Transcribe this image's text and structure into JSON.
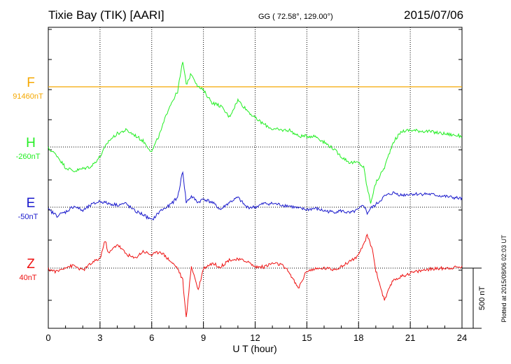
{
  "header": {
    "title": "Tixie Bay (TIK)  [AARI]",
    "coords": "GG ( 72.58°, 129.00°)",
    "date": "2015/07/06"
  },
  "footer": {
    "plotted": "Plotted at 2015/08/06 02:03 UT",
    "scale_label": "500 nT"
  },
  "chart_data": {
    "type": "line",
    "title": "Tixie Bay (TIK)  [AARI]",
    "xlabel": "U T (hour)",
    "ylabel": "",
    "xlim": [
      0,
      24
    ],
    "x_ticks": [
      "0",
      "3",
      "6",
      "9",
      "12",
      "15",
      "18",
      "21",
      "24"
    ],
    "scale_bar_nT": 500,
    "grid": true,
    "series": [
      {
        "name": "F",
        "baseline_label": "91460nT",
        "baseline_nT": 91460,
        "color": "#f5a800",
        "x": [
          0,
          24
        ],
        "y": [
          91460,
          91460
        ]
      },
      {
        "name": "H",
        "baseline_label": "-260nT",
        "baseline_nT": -260,
        "color": "#22ee22",
        "x": [
          0,
          0.5,
          1.0,
          1.5,
          2.0,
          2.5,
          3.0,
          3.5,
          4.0,
          4.5,
          5.0,
          5.5,
          6.0,
          6.5,
          7.0,
          7.5,
          7.8,
          8.0,
          8.3,
          8.7,
          9.0,
          9.5,
          10.0,
          10.5,
          11.0,
          11.5,
          12.0,
          12.5,
          13.0,
          13.5,
          14.0,
          14.5,
          15.0,
          15.5,
          16.0,
          16.5,
          17.0,
          17.5,
          18.0,
          18.3,
          18.5,
          18.7,
          19.0,
          19.5,
          20.0,
          20.5,
          21.0,
          22.0,
          23.0,
          24.0
        ],
        "y": [
          -270,
          -330,
          -430,
          -460,
          -440,
          -420,
          -340,
          -210,
          -150,
          -120,
          -160,
          -210,
          -300,
          -140,
          70,
          200,
          450,
          260,
          350,
          240,
          210,
          110,
          80,
          -10,
          130,
          50,
          -20,
          -70,
          -110,
          -120,
          -120,
          -170,
          -170,
          -170,
          -220,
          -270,
          -340,
          -390,
          -390,
          -430,
          -600,
          -720,
          -560,
          -430,
          -220,
          -130,
          -120,
          -130,
          -150,
          -170
        ]
      },
      {
        "name": "E",
        "baseline_label": "-50nT",
        "baseline_nT": -50,
        "color": "#1a1acc",
        "x": [
          0,
          0.5,
          1.0,
          1.5,
          2.0,
          2.5,
          3.0,
          3.5,
          4.0,
          4.5,
          5.0,
          5.5,
          6.0,
          6.5,
          7.0,
          7.5,
          7.8,
          8.0,
          8.3,
          8.7,
          9.0,
          9.5,
          10.0,
          10.5,
          11.0,
          11.5,
          12.0,
          12.5,
          13.0,
          13.5,
          14.0,
          14.5,
          15.0,
          15.5,
          16.0,
          16.5,
          17.0,
          17.5,
          18.0,
          18.3,
          18.5,
          18.7,
          19.0,
          19.5,
          20.0,
          20.5,
          21.0,
          22.0,
          23.0,
          24.0
        ],
        "y": [
          -70,
          -120,
          -90,
          -40,
          -80,
          -30,
          0,
          -20,
          -30,
          -20,
          -80,
          -110,
          -160,
          -80,
          -40,
          30,
          250,
          -10,
          40,
          -10,
          20,
          -10,
          -70,
          -10,
          30,
          -50,
          -50,
          -20,
          -20,
          -30,
          -40,
          -60,
          -70,
          -60,
          -80,
          -90,
          -80,
          -100,
          -70,
          -30,
          -100,
          -60,
          -30,
          40,
          70,
          50,
          60,
          60,
          40,
          20
        ]
      },
      {
        "name": "Z",
        "baseline_label": "40nT",
        "baseline_nT": 40,
        "color": "#ee1111",
        "x": [
          0,
          0.5,
          1.0,
          1.5,
          2.0,
          2.5,
          3.0,
          3.3,
          3.5,
          4.0,
          4.5,
          5.0,
          5.5,
          6.0,
          6.5,
          7.0,
          7.5,
          7.8,
          8.0,
          8.3,
          8.7,
          9.0,
          9.5,
          10.0,
          10.5,
          11.0,
          11.5,
          12.0,
          12.5,
          13.0,
          13.5,
          14.0,
          14.5,
          15.0,
          15.5,
          16.0,
          16.5,
          17.0,
          17.5,
          18.0,
          18.5,
          18.8,
          19.0,
          19.5,
          20.0,
          20.5,
          21.0,
          22.0,
          23.0,
          24.0
        ],
        "y": [
          30,
          10,
          50,
          60,
          20,
          80,
          120,
          270,
          160,
          240,
          160,
          120,
          180,
          150,
          180,
          110,
          40,
          -60,
          -380,
          60,
          -140,
          40,
          80,
          50,
          110,
          110,
          100,
          50,
          50,
          80,
          70,
          0,
          -130,
          20,
          30,
          40,
          30,
          50,
          100,
          140,
          310,
          200,
          20,
          -230,
          -60,
          -30,
          0,
          30,
          40,
          50
        ]
      }
    ]
  }
}
